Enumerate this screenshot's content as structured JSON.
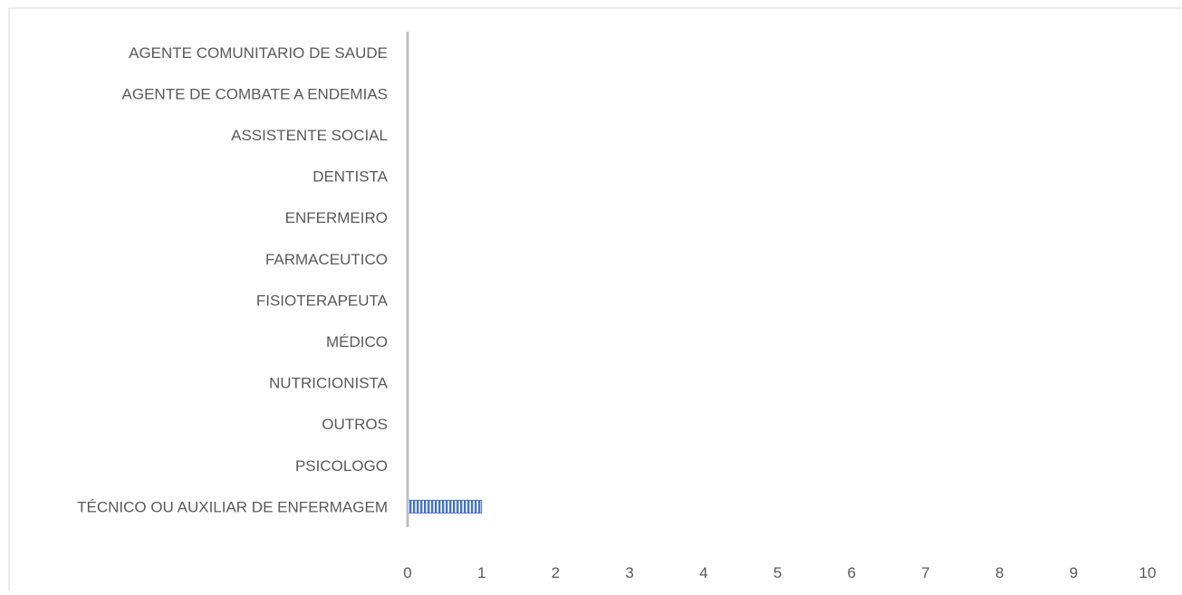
{
  "chart_data": {
    "type": "bar",
    "orientation": "horizontal",
    "categories": [
      "AGENTE COMUNITARIO DE SAUDE",
      "AGENTE DE COMBATE A ENDEMIAS",
      "ASSISTENTE SOCIAL",
      "DENTISTA",
      "ENFERMEIRO",
      "FARMACEUTICO",
      "FISIOTERAPEUTA",
      "MÉDICO",
      "NUTRICIONISTA",
      "OUTROS",
      "PSICOLOGO",
      "TÉCNICO OU AUXILIAR DE ENFERMAGEM"
    ],
    "values": [
      0,
      0,
      0,
      0,
      0,
      0,
      0,
      0,
      0,
      0,
      0,
      1
    ],
    "title": "",
    "xlabel": "",
    "ylabel": "",
    "xlim": [
      0,
      10
    ],
    "xticks": [
      "0",
      "1",
      "2",
      "3",
      "4",
      "5",
      "6",
      "7",
      "8",
      "9",
      "10"
    ],
    "grid": false,
    "legend": "none",
    "bar_color": "#4472c4",
    "bar_pattern": "vertical-stripes",
    "axis_color": "#bfbfbf",
    "text_color": "#595959"
  }
}
